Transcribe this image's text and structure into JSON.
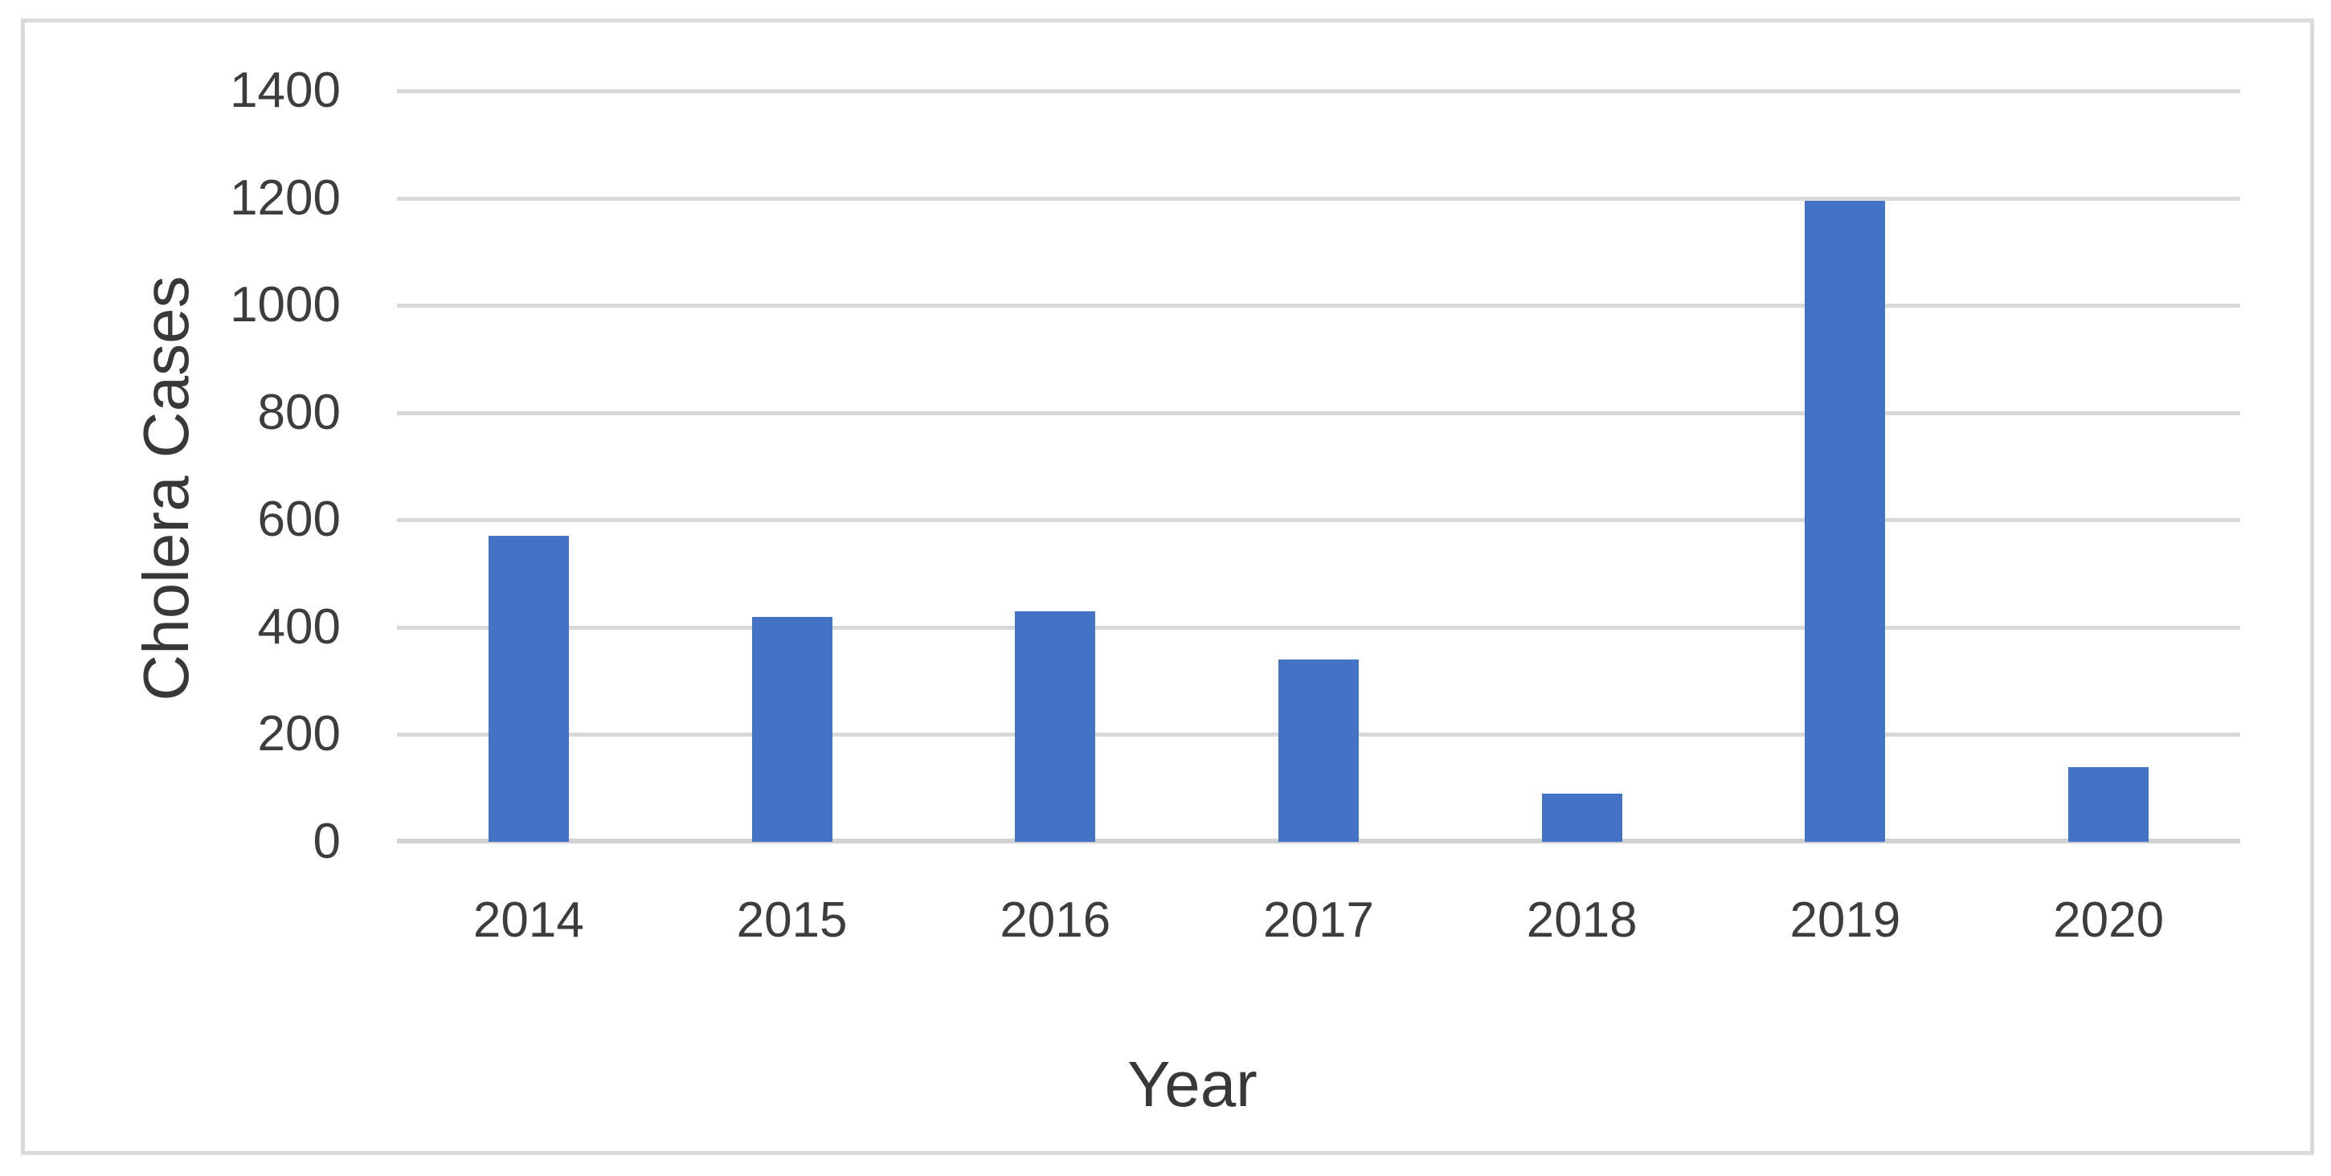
{
  "chart_data": {
    "type": "bar",
    "title": "",
    "xlabel": "Year",
    "ylabel": "Cholera Cases",
    "categories": [
      "2014",
      "2015",
      "2016",
      "2017",
      "2018",
      "2019",
      "2020"
    ],
    "values": [
      570,
      420,
      430,
      340,
      90,
      1195,
      140
    ],
    "series_name": "Cholera Cases",
    "ylim": [
      0,
      1400
    ],
    "ytick_step": 200,
    "ytick_labels": [
      "0",
      "200",
      "400",
      "600",
      "800",
      "1000",
      "1200",
      "1400"
    ],
    "grid": "horizontal",
    "legend_position": "none",
    "colors": {
      "bar": "#4472C4",
      "gridline": "#d9d9d9",
      "axis_line": "#d2d2d2",
      "tick_text": "#3d3d3d",
      "title_text": "#383838",
      "chart_border": "#dbdbdb",
      "background": "#ffffff"
    }
  }
}
